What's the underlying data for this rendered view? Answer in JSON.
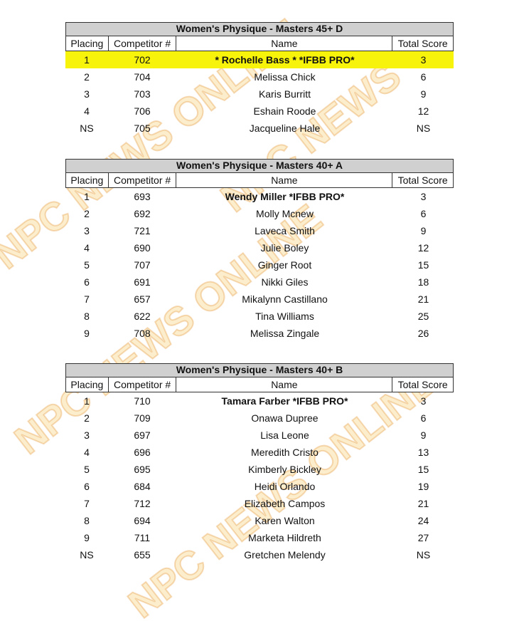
{
  "watermark": "NPC NEWS ONLINE",
  "columns": [
    "Placing",
    "Competitor #",
    "Name",
    "Total Score"
  ],
  "tables": [
    {
      "title": "Women's Physique - Masters 45+ D",
      "rows": [
        {
          "placing": "1",
          "number": "702",
          "name": "* Rochelle Bass * *IFBB PRO*",
          "score": "3",
          "highlight": true,
          "bold": true
        },
        {
          "placing": "2",
          "number": "704",
          "name": "Melissa Chick",
          "score": "6"
        },
        {
          "placing": "3",
          "number": "703",
          "name": "Karis Burritt",
          "score": "9"
        },
        {
          "placing": "4",
          "number": "706",
          "name": "Eshain Roode",
          "score": "12"
        },
        {
          "placing": "NS",
          "number": "705",
          "name": "Jacqueline Hale",
          "score": "NS"
        }
      ]
    },
    {
      "title": "Women's Physique - Masters 40+ A",
      "rows": [
        {
          "placing": "1",
          "number": "693",
          "name": "Wendy Miller *IFBB PRO*",
          "score": "3",
          "bold": true
        },
        {
          "placing": "2",
          "number": "692",
          "name": "Molly Mcnew",
          "score": "6"
        },
        {
          "placing": "3",
          "number": "721",
          "name": "Laveca Smith",
          "score": "9"
        },
        {
          "placing": "4",
          "number": "690",
          "name": "Julie Boley",
          "score": "12"
        },
        {
          "placing": "5",
          "number": "707",
          "name": "Ginger Root",
          "score": "15"
        },
        {
          "placing": "6",
          "number": "691",
          "name": "Nikki Giles",
          "score": "18"
        },
        {
          "placing": "7",
          "number": "657",
          "name": "Mikalynn Castillano",
          "score": "21"
        },
        {
          "placing": "8",
          "number": "622",
          "name": "Tina Williams",
          "score": "25"
        },
        {
          "placing": "9",
          "number": "708",
          "name": "Melissa Zingale",
          "score": "26"
        }
      ]
    },
    {
      "title": "Women's Physique - Masters 40+ B",
      "rows": [
        {
          "placing": "1",
          "number": "710",
          "name": "Tamara Farber *IFBB PRO*",
          "score": "3",
          "bold": true
        },
        {
          "placing": "2",
          "number": "709",
          "name": "Onawa Dupree",
          "score": "6"
        },
        {
          "placing": "3",
          "number": "697",
          "name": "Lisa Leone",
          "score": "9"
        },
        {
          "placing": "4",
          "number": "696",
          "name": "Meredith Cristo",
          "score": "13"
        },
        {
          "placing": "5",
          "number": "695",
          "name": "Kimberly Bickley",
          "score": "15"
        },
        {
          "placing": "6",
          "number": "684",
          "name": "Heidi Orlando",
          "score": "19"
        },
        {
          "placing": "7",
          "number": "712",
          "name": "Elizabeth Campos",
          "score": "21"
        },
        {
          "placing": "8",
          "number": "694",
          "name": "Karen Walton",
          "score": "24"
        },
        {
          "placing": "9",
          "number": "711",
          "name": "Marketa Hildreth",
          "score": "27"
        },
        {
          "placing": "NS",
          "number": "655",
          "name": "Gretchen Melendy",
          "score": "NS"
        }
      ]
    }
  ],
  "colors": {
    "highlight": "#f7f30a",
    "title_bg": "#d0d0d0",
    "watermark": "#f0a020"
  }
}
